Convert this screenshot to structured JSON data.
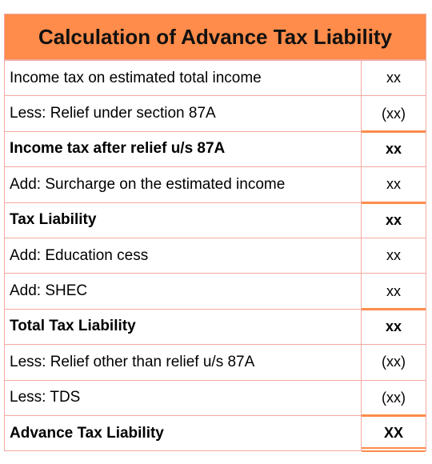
{
  "title": "Calculation of Advance Tax Liability",
  "rows": [
    {
      "label": "Income tax on estimated total income",
      "value": "xx"
    },
    {
      "label": "Less: Relief under section 87A",
      "value": "(xx)"
    },
    {
      "label": "Income tax after relief u/s 87A",
      "value": "xx"
    },
    {
      "label": "Add: Surcharge on the estimated income",
      "value": "xx"
    },
    {
      "label": "Tax Liability",
      "value": "xx"
    },
    {
      "label": "Add: Education cess",
      "value": "xx"
    },
    {
      "label": "Add: SHEC",
      "value": "xx"
    },
    {
      "label": "Total Tax Liability",
      "value": "xx"
    },
    {
      "label": "Less: Relief other than relief u/s 87A",
      "value": "(xx)"
    },
    {
      "label": "Less: TDS",
      "value": "(xx)"
    },
    {
      "label": "Advance Tax Liability",
      "value": "XX"
    }
  ],
  "accent_color": "#ff8c4a",
  "border_color": "#f2a9a0"
}
